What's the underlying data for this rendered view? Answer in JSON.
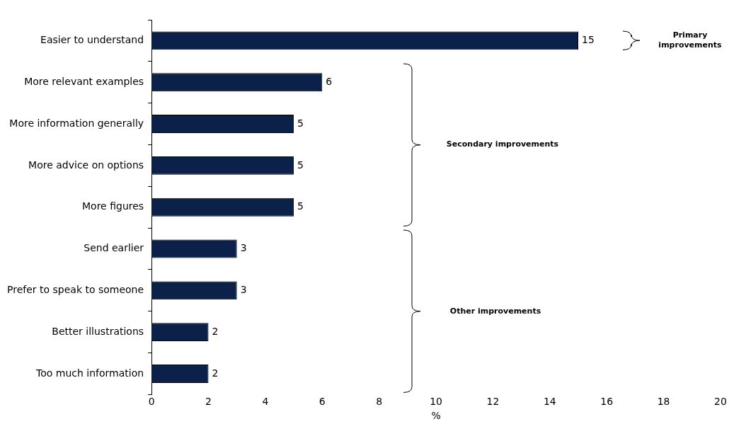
{
  "chart_data": {
    "type": "bar",
    "orientation": "horizontal",
    "categories": [
      "Easier to understand",
      "More relevant examples",
      "More information generally",
      "More advice on options",
      "More figures",
      "Send earlier",
      "Prefer to speak to someone",
      "Better illustrations",
      "Too much information"
    ],
    "values": [
      15,
      6,
      5,
      5,
      5,
      3,
      3,
      2,
      2
    ],
    "color": "#0c2149",
    "xlabel": "%",
    "xlim": [
      0,
      20
    ],
    "xticks": [
      0,
      2,
      4,
      6,
      8,
      10,
      12,
      14,
      16,
      18,
      20
    ],
    "grid": false,
    "legend": false,
    "data_labels": true,
    "annotations": [
      "Primary improvements",
      "Secondary improvements",
      "Other improvements"
    ]
  }
}
